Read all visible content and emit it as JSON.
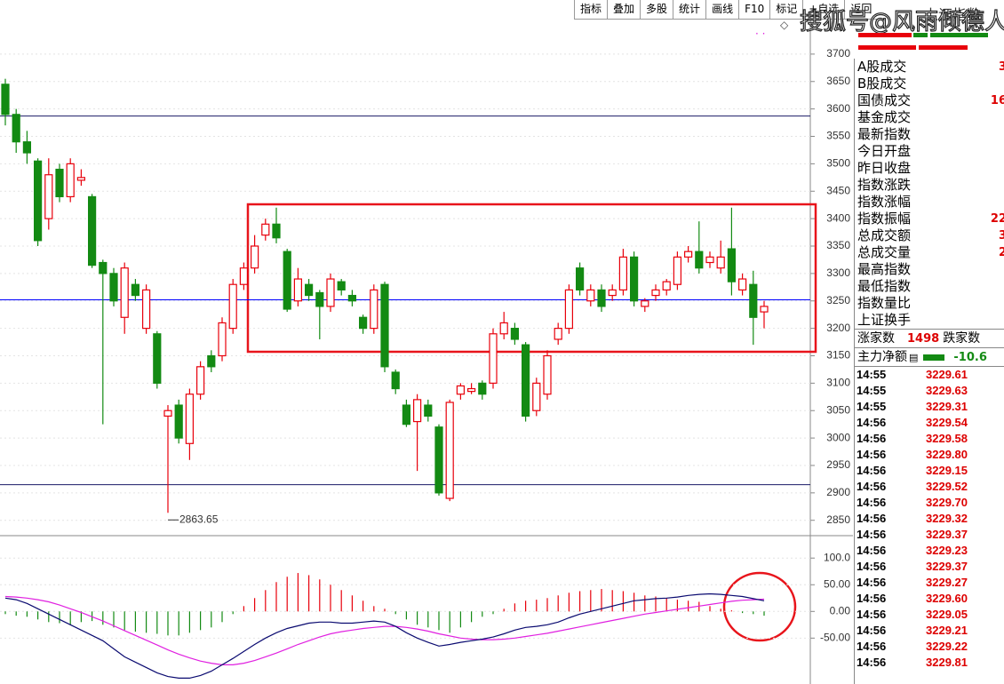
{
  "toolbar": [
    "指标",
    "叠加",
    "多股",
    "统计",
    "画线",
    "F10",
    "标记",
    "+自选",
    "返回"
  ],
  "header": {
    "symbol": "上证指数"
  },
  "watermark": "搜狐号@风雨倾德人",
  "quote_rows": [
    {
      "label": "A股成交",
      "value": "3"
    },
    {
      "label": "B股成交"
    },
    {
      "label": "国债成交",
      "value": "16"
    },
    {
      "label": "基金成交"
    },
    {
      "label": "最新指数"
    },
    {
      "label": "今日开盘"
    },
    {
      "label": "昨日收盘"
    },
    {
      "label": "指数涨跌"
    },
    {
      "label": "指数涨幅"
    },
    {
      "label": "指数振幅",
      "value": "22"
    },
    {
      "label": "总成交额",
      "value": "3"
    },
    {
      "label": "总成交量",
      "value": "2"
    },
    {
      "label": "最高指数"
    },
    {
      "label": "最低指数"
    },
    {
      "label": "指数量比"
    },
    {
      "label": "上证换手"
    }
  ],
  "breadth": {
    "up_label": "涨家数",
    "up_count": "1498",
    "down_label": "跌家数"
  },
  "main_net": {
    "label": "主力净额",
    "value": "-10.6"
  },
  "ticks": [
    {
      "time": "14:55",
      "price": "3229.61"
    },
    {
      "time": "14:55",
      "price": "3229.63"
    },
    {
      "time": "14:55",
      "price": "3229.31"
    },
    {
      "time": "14:56",
      "price": "3229.54"
    },
    {
      "time": "14:56",
      "price": "3229.58"
    },
    {
      "time": "14:56",
      "price": "3229.80"
    },
    {
      "time": "14:56",
      "price": "3229.15"
    },
    {
      "time": "14:56",
      "price": "3229.52"
    },
    {
      "time": "14:56",
      "price": "3229.70"
    },
    {
      "time": "14:56",
      "price": "3229.32"
    },
    {
      "time": "14:56",
      "price": "3229.37"
    },
    {
      "time": "14:56",
      "price": "3229.23"
    },
    {
      "time": "14:56",
      "price": "3229.37"
    },
    {
      "time": "14:56",
      "price": "3229.27"
    },
    {
      "time": "14:56",
      "price": "3229.60"
    },
    {
      "time": "14:56",
      "price": "3229.05"
    },
    {
      "time": "14:56",
      "price": "3229.21"
    },
    {
      "time": "14:56",
      "price": "3229.22"
    },
    {
      "time": "14:56",
      "price": "3229.81"
    }
  ],
  "chart_data": [
    {
      "type": "candlestick",
      "up_color": "#e8000b",
      "down_color": "#138a13",
      "open": [
        3645,
        3590,
        3540,
        3505,
        3400,
        3490,
        3440,
        3470,
        3440,
        3320,
        3300,
        3220,
        3280,
        3200,
        3190,
        3040,
        3060,
        2990,
        3080,
        3150,
        3150,
        3200,
        3280,
        3310,
        3370,
        3390,
        3340,
        3250,
        3280,
        3265,
        3240,
        3285,
        3260,
        3220,
        3200,
        3280,
        3120,
        3060,
        3030,
        3060,
        3020,
        2890,
        3080,
        3085,
        3100,
        3100,
        3190,
        3200,
        3170,
        3050,
        3080,
        3180,
        3200,
        3310,
        3250,
        3270,
        3260,
        3270,
        3330,
        3240,
        3260,
        3270,
        3280,
        3330,
        3340,
        3320,
        3310,
        3345,
        3270,
        3280,
        3230
      ],
      "high": [
        3655,
        3600,
        3560,
        3510,
        3510,
        3500,
        3510,
        3490,
        3445,
        3325,
        3310,
        3320,
        3290,
        3280,
        3195,
        3060,
        3070,
        3090,
        3140,
        3160,
        3220,
        3290,
        3320,
        3370,
        3400,
        3420,
        3345,
        3310,
        3290,
        3270,
        3300,
        3290,
        3270,
        3225,
        3280,
        3285,
        3125,
        3070,
        3080,
        3070,
        3025,
        3070,
        3100,
        3100,
        3105,
        3200,
        3230,
        3210,
        3175,
        3110,
        3160,
        3210,
        3280,
        3320,
        3280,
        3280,
        3280,
        3345,
        3340,
        3255,
        3280,
        3290,
        3340,
        3350,
        3395,
        3340,
        3360,
        3420,
        3300,
        3305,
        3250
      ],
      "low": [
        3570,
        3520,
        3500,
        3350,
        3380,
        3430,
        3430,
        3460,
        3310,
        3025,
        3240,
        3190,
        3250,
        3190,
        3090,
        2863.65,
        2990,
        2960,
        3070,
        3120,
        3140,
        3190,
        3270,
        3300,
        3360,
        3355,
        3230,
        3240,
        3250,
        3180,
        3230,
        3260,
        3240,
        3190,
        3190,
        3120,
        3080,
        3020,
        2940,
        3030,
        2895,
        2885,
        3070,
        3080,
        3070,
        3090,
        3180,
        3170,
        3030,
        3040,
        3070,
        3170,
        3190,
        3260,
        3240,
        3230,
        3250,
        3260,
        3240,
        3230,
        3250,
        3260,
        3270,
        3320,
        3300,
        3310,
        3300,
        3260,
        3260,
        3170,
        3200
      ],
      "close": [
        3590,
        3540,
        3520,
        3360,
        3480,
        3440,
        3500,
        3475,
        3315,
        3300,
        3250,
        3310,
        3260,
        3270,
        3100,
        3050,
        3000,
        3080,
        3130,
        3130,
        3210,
        3280,
        3310,
        3350,
        3390,
        3365,
        3235,
        3290,
        3260,
        3240,
        3290,
        3270,
        3250,
        3200,
        3270,
        3130,
        3090,
        3025,
        3070,
        3040,
        2900,
        3065,
        3095,
        3090,
        3080,
        3190,
        3210,
        3180,
        3040,
        3100,
        3150,
        3200,
        3270,
        3270,
        3270,
        3240,
        3270,
        3330,
        3250,
        3250,
        3270,
        3285,
        3330,
        3340,
        3310,
        3330,
        3330,
        3285,
        3290,
        3220,
        3240
      ],
      "ylim": [
        2822,
        3763
      ],
      "yticks": [
        3700,
        3650,
        3600,
        3550,
        3500,
        3450,
        3400,
        3350,
        3300,
        3250,
        3200,
        3150,
        3100,
        3050,
        3000,
        2950,
        2900,
        2850
      ],
      "hlines": [
        3587,
        3252,
        2915
      ],
      "hline_colors": [
        "#1a1a66",
        "#0000ff",
        "#1a1a66"
      ]
    },
    {
      "type": "macd",
      "up_color": "#e8000b",
      "down_color": "#138a13",
      "dif_color": "#0a0a70",
      "dea_color": "#e020e0",
      "values": [
        -5,
        -8,
        -10,
        -15,
        -20,
        -22,
        -25,
        -20,
        -18,
        -25,
        -30,
        -35,
        -38,
        -40,
        -42,
        -45,
        -45,
        -40,
        -35,
        -30,
        -20,
        -5,
        10,
        25,
        40,
        55,
        65,
        72,
        68,
        60,
        50,
        40,
        30,
        20,
        10,
        5,
        -5,
        -15,
        -25,
        -30,
        -35,
        -40,
        -30,
        -20,
        -10,
        -5,
        5,
        15,
        20,
        22,
        25,
        30,
        35,
        38,
        40,
        42,
        40,
        38,
        35,
        30,
        28,
        25,
        22,
        20,
        18,
        10,
        5,
        2,
        -3,
        -5,
        -8
      ],
      "dif": [
        25,
        22,
        15,
        5,
        -5,
        -15,
        -25,
        -35,
        -45,
        -55,
        -70,
        -85,
        -95,
        -105,
        -115,
        -122,
        -125,
        -125,
        -120,
        -112,
        -100,
        -88,
        -75,
        -62,
        -50,
        -40,
        -32,
        -27,
        -22,
        -20,
        -20,
        -22,
        -22,
        -20,
        -18,
        -20,
        -28,
        -40,
        -50,
        -58,
        -65,
        -62,
        -58,
        -55,
        -52,
        -48,
        -42,
        -35,
        -30,
        -28,
        -25,
        -20,
        -12,
        -5,
        0,
        5,
        10,
        15,
        20,
        22,
        24,
        25,
        27,
        30,
        32,
        33,
        32,
        30,
        28,
        24,
        20
      ],
      "dea": [
        28,
        27,
        25,
        22,
        18,
        12,
        5,
        -2,
        -10,
        -18,
        -27,
        -36,
        -45,
        -54,
        -63,
        -72,
        -80,
        -87,
        -93,
        -97,
        -100,
        -100,
        -97,
        -92,
        -85,
        -78,
        -70,
        -62,
        -55,
        -48,
        -42,
        -38,
        -35,
        -32,
        -30,
        -28,
        -28,
        -30,
        -33,
        -37,
        -42,
        -46,
        -50,
        -52,
        -53,
        -53,
        -52,
        -50,
        -47,
        -44,
        -41,
        -37,
        -33,
        -29,
        -25,
        -21,
        -17,
        -13,
        -9,
        -5,
        -2,
        1,
        4,
        7,
        10,
        13,
        16,
        19,
        21,
        22,
        23
      ],
      "ylim": [
        -136,
        142
      ],
      "yticks": [
        {
          "value": 100,
          "label": "100.0"
        },
        {
          "value": 50,
          "label": "50.00"
        },
        {
          "value": 0,
          "label": "0.00"
        },
        {
          "value": -50,
          "label": "-50.00"
        }
      ]
    }
  ]
}
